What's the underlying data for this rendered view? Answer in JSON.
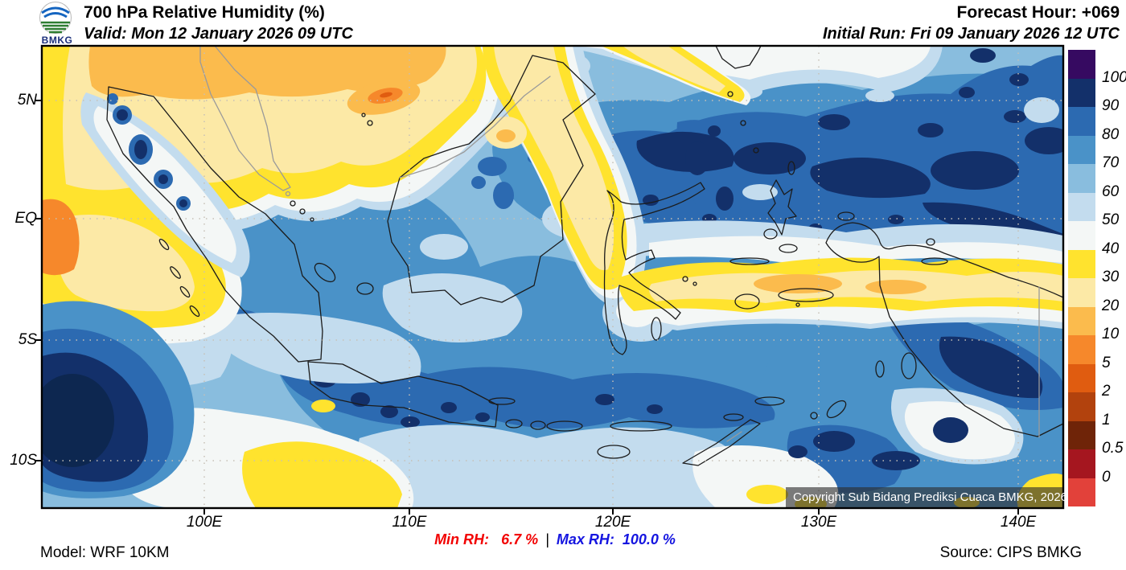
{
  "header": {
    "title": "700 hPa Relative Humidity (%)",
    "valid": "Valid: Mon 12 January 2026 09 UTC",
    "forecast_hour": "Forecast Hour: +069",
    "initial_run": "Initial Run: Fri 09 January 2026 12 UTC",
    "logo_text": "BMKG"
  },
  "map": {
    "y_ticks": [
      "5N",
      "EQ",
      "5S",
      "10S"
    ],
    "x_ticks": [
      "100E",
      "110E",
      "120E",
      "130E",
      "140E"
    ],
    "copyright": "Copyright Sub Bidang Prediksi Cuaca BMKG, 2026"
  },
  "colorbar": {
    "labels": [
      "100",
      "90",
      "80",
      "70",
      "60",
      "50",
      "40",
      "30",
      "20",
      "10",
      "5",
      "2",
      "1",
      "0.5",
      "0"
    ],
    "colors": [
      "#360a61",
      "#13306a",
      "#2c6ab1",
      "#4a92c8",
      "#89bdde",
      "#c3dcee",
      "#f4f7f6",
      "#ffe32e",
      "#fce9a6",
      "#fbbb4d",
      "#f6882b",
      "#e05c10",
      "#b2420d",
      "#6f2408",
      "#a5161f",
      "#e2413a"
    ]
  },
  "footer": {
    "model": "Model: WRF 10KM",
    "min_label": "Min RH:",
    "min_value": "6.7 %",
    "separator": "|",
    "max_label": "Max RH:",
    "max_value": "100.0 %",
    "source": "Source: CIPS BMKG"
  }
}
